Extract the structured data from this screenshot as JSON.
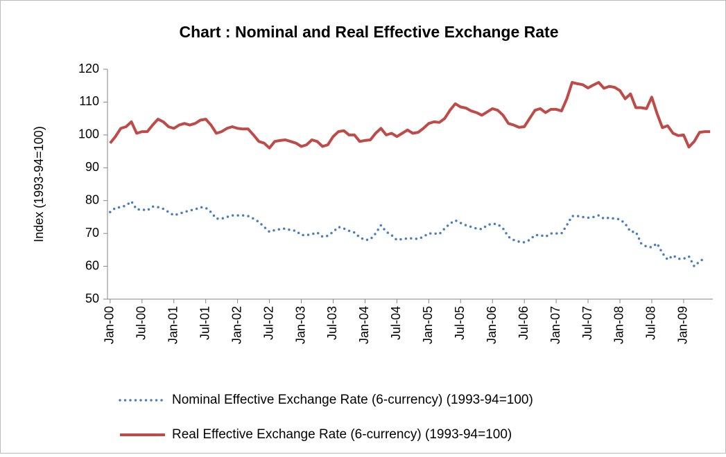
{
  "chart_data": {
    "type": "line",
    "title": "Chart : Nominal and Real Effective Exchange Rate",
    "y_label": "Index (1993-94=100)",
    "categories": [
      "Jan-00",
      null,
      null,
      null,
      null,
      null,
      "Jul-00",
      null,
      null,
      null,
      null,
      null,
      "Jan-01",
      null,
      null,
      null,
      null,
      null,
      "Jul-01",
      null,
      null,
      null,
      null,
      null,
      "Jan-02",
      null,
      null,
      null,
      null,
      null,
      "Jul-02",
      null,
      null,
      null,
      null,
      null,
      "Jan-03",
      null,
      null,
      null,
      null,
      null,
      "Jul-03",
      null,
      null,
      null,
      null,
      null,
      "Jan-04",
      null,
      null,
      null,
      null,
      null,
      "Jul-04",
      null,
      null,
      null,
      null,
      null,
      "Jan-05",
      null,
      null,
      null,
      null,
      null,
      "Jul-05",
      null,
      null,
      null,
      null,
      null,
      "Jan-06",
      null,
      null,
      null,
      null,
      null,
      "Jul-06",
      null,
      null,
      null,
      null,
      null,
      "Jan-07",
      null,
      null,
      null,
      null,
      null,
      "Jul-07",
      null,
      null,
      null,
      null,
      null,
      "Jan-08",
      null,
      null,
      null,
      null,
      null,
      "Jul-08",
      null,
      null,
      null,
      null,
      null,
      "Jan-09",
      null,
      null,
      null,
      null,
      null
    ],
    "series": [
      {
        "name": "Nominal Effective Exchange Rate (6-currency) (1993-94=100)",
        "color": "#4a7ebb",
        "style": "dotted",
        "values": [
          76.5,
          77.8,
          78,
          78.5,
          79.8,
          77.3,
          77.3,
          77,
          78.2,
          78,
          77.5,
          76.5,
          75.5,
          76,
          76.5,
          77,
          77.3,
          78,
          77.8,
          76.5,
          74.5,
          74.5,
          75,
          75.5,
          75.5,
          75.5,
          75.3,
          74.5,
          73.5,
          72,
          70.5,
          71,
          71.3,
          71.5,
          71,
          70.8,
          69.5,
          69.5,
          69.8,
          70.3,
          69,
          69.3,
          70.5,
          72,
          71.5,
          70.8,
          70.3,
          68.8,
          68,
          68.2,
          70,
          72.5,
          70.5,
          69.5,
          68,
          68.3,
          68.5,
          68.5,
          68.3,
          69,
          70,
          70,
          69.8,
          71.5,
          73,
          74,
          73.2,
          72.5,
          72,
          71.5,
          71.3,
          72.5,
          73,
          72.8,
          71.5,
          69,
          68,
          67.5,
          67.3,
          68,
          69.5,
          69.5,
          69,
          70,
          70,
          70,
          72.5,
          75.3,
          75.3,
          75,
          74.8,
          75,
          75.5,
          74.5,
          74.8,
          74.5,
          74.3,
          73,
          70.5,
          70.5,
          67,
          66,
          65.8,
          67,
          64,
          62,
          63.3,
          62.3,
          62.3,
          63,
          60,
          61.5,
          62.5,
          null
        ]
      },
      {
        "name": "Real Effective Exchange Rate (6-currency) (1993-94=100)",
        "color": "#be4b48",
        "style": "solid",
        "values": [
          97.5,
          99.5,
          102,
          102.5,
          104,
          100.5,
          101,
          101,
          103,
          104.8,
          104,
          102.5,
          102,
          103,
          103.5,
          103,
          103.5,
          104.5,
          104.8,
          103,
          100.5,
          101,
          102,
          102.5,
          102,
          101.8,
          101.8,
          100,
          98,
          97.5,
          96,
          98,
          98.3,
          98.5,
          98,
          97.5,
          96.5,
          97,
          98.5,
          98,
          96.5,
          97,
          99.5,
          101,
          101.3,
          100,
          100,
          98,
          98.3,
          98.5,
          100.5,
          102,
          100,
          100.5,
          99.5,
          100.5,
          101.5,
          100.5,
          100.8,
          102,
          103.5,
          104,
          103.8,
          105,
          107.5,
          109.5,
          108.5,
          108.2,
          107.3,
          106.8,
          106,
          107,
          108,
          107.5,
          106,
          103.5,
          103,
          102.3,
          102.5,
          105,
          107.5,
          108,
          106.8,
          107.8,
          107.8,
          107.3,
          111,
          116,
          115.6,
          115.3,
          114.3,
          115.2,
          116,
          114.2,
          114.8,
          114.5,
          113.5,
          111,
          112.5,
          108.3,
          108.3,
          108,
          111.5,
          106.5,
          102.2,
          102.8,
          100.5,
          99.8,
          100,
          96.3,
          98,
          100.8,
          101,
          101
        ]
      }
    ],
    "ylim": [
      50,
      120
    ],
    "yticks": [
      50,
      60,
      70,
      80,
      90,
      100,
      110,
      120
    ],
    "grid": false
  }
}
